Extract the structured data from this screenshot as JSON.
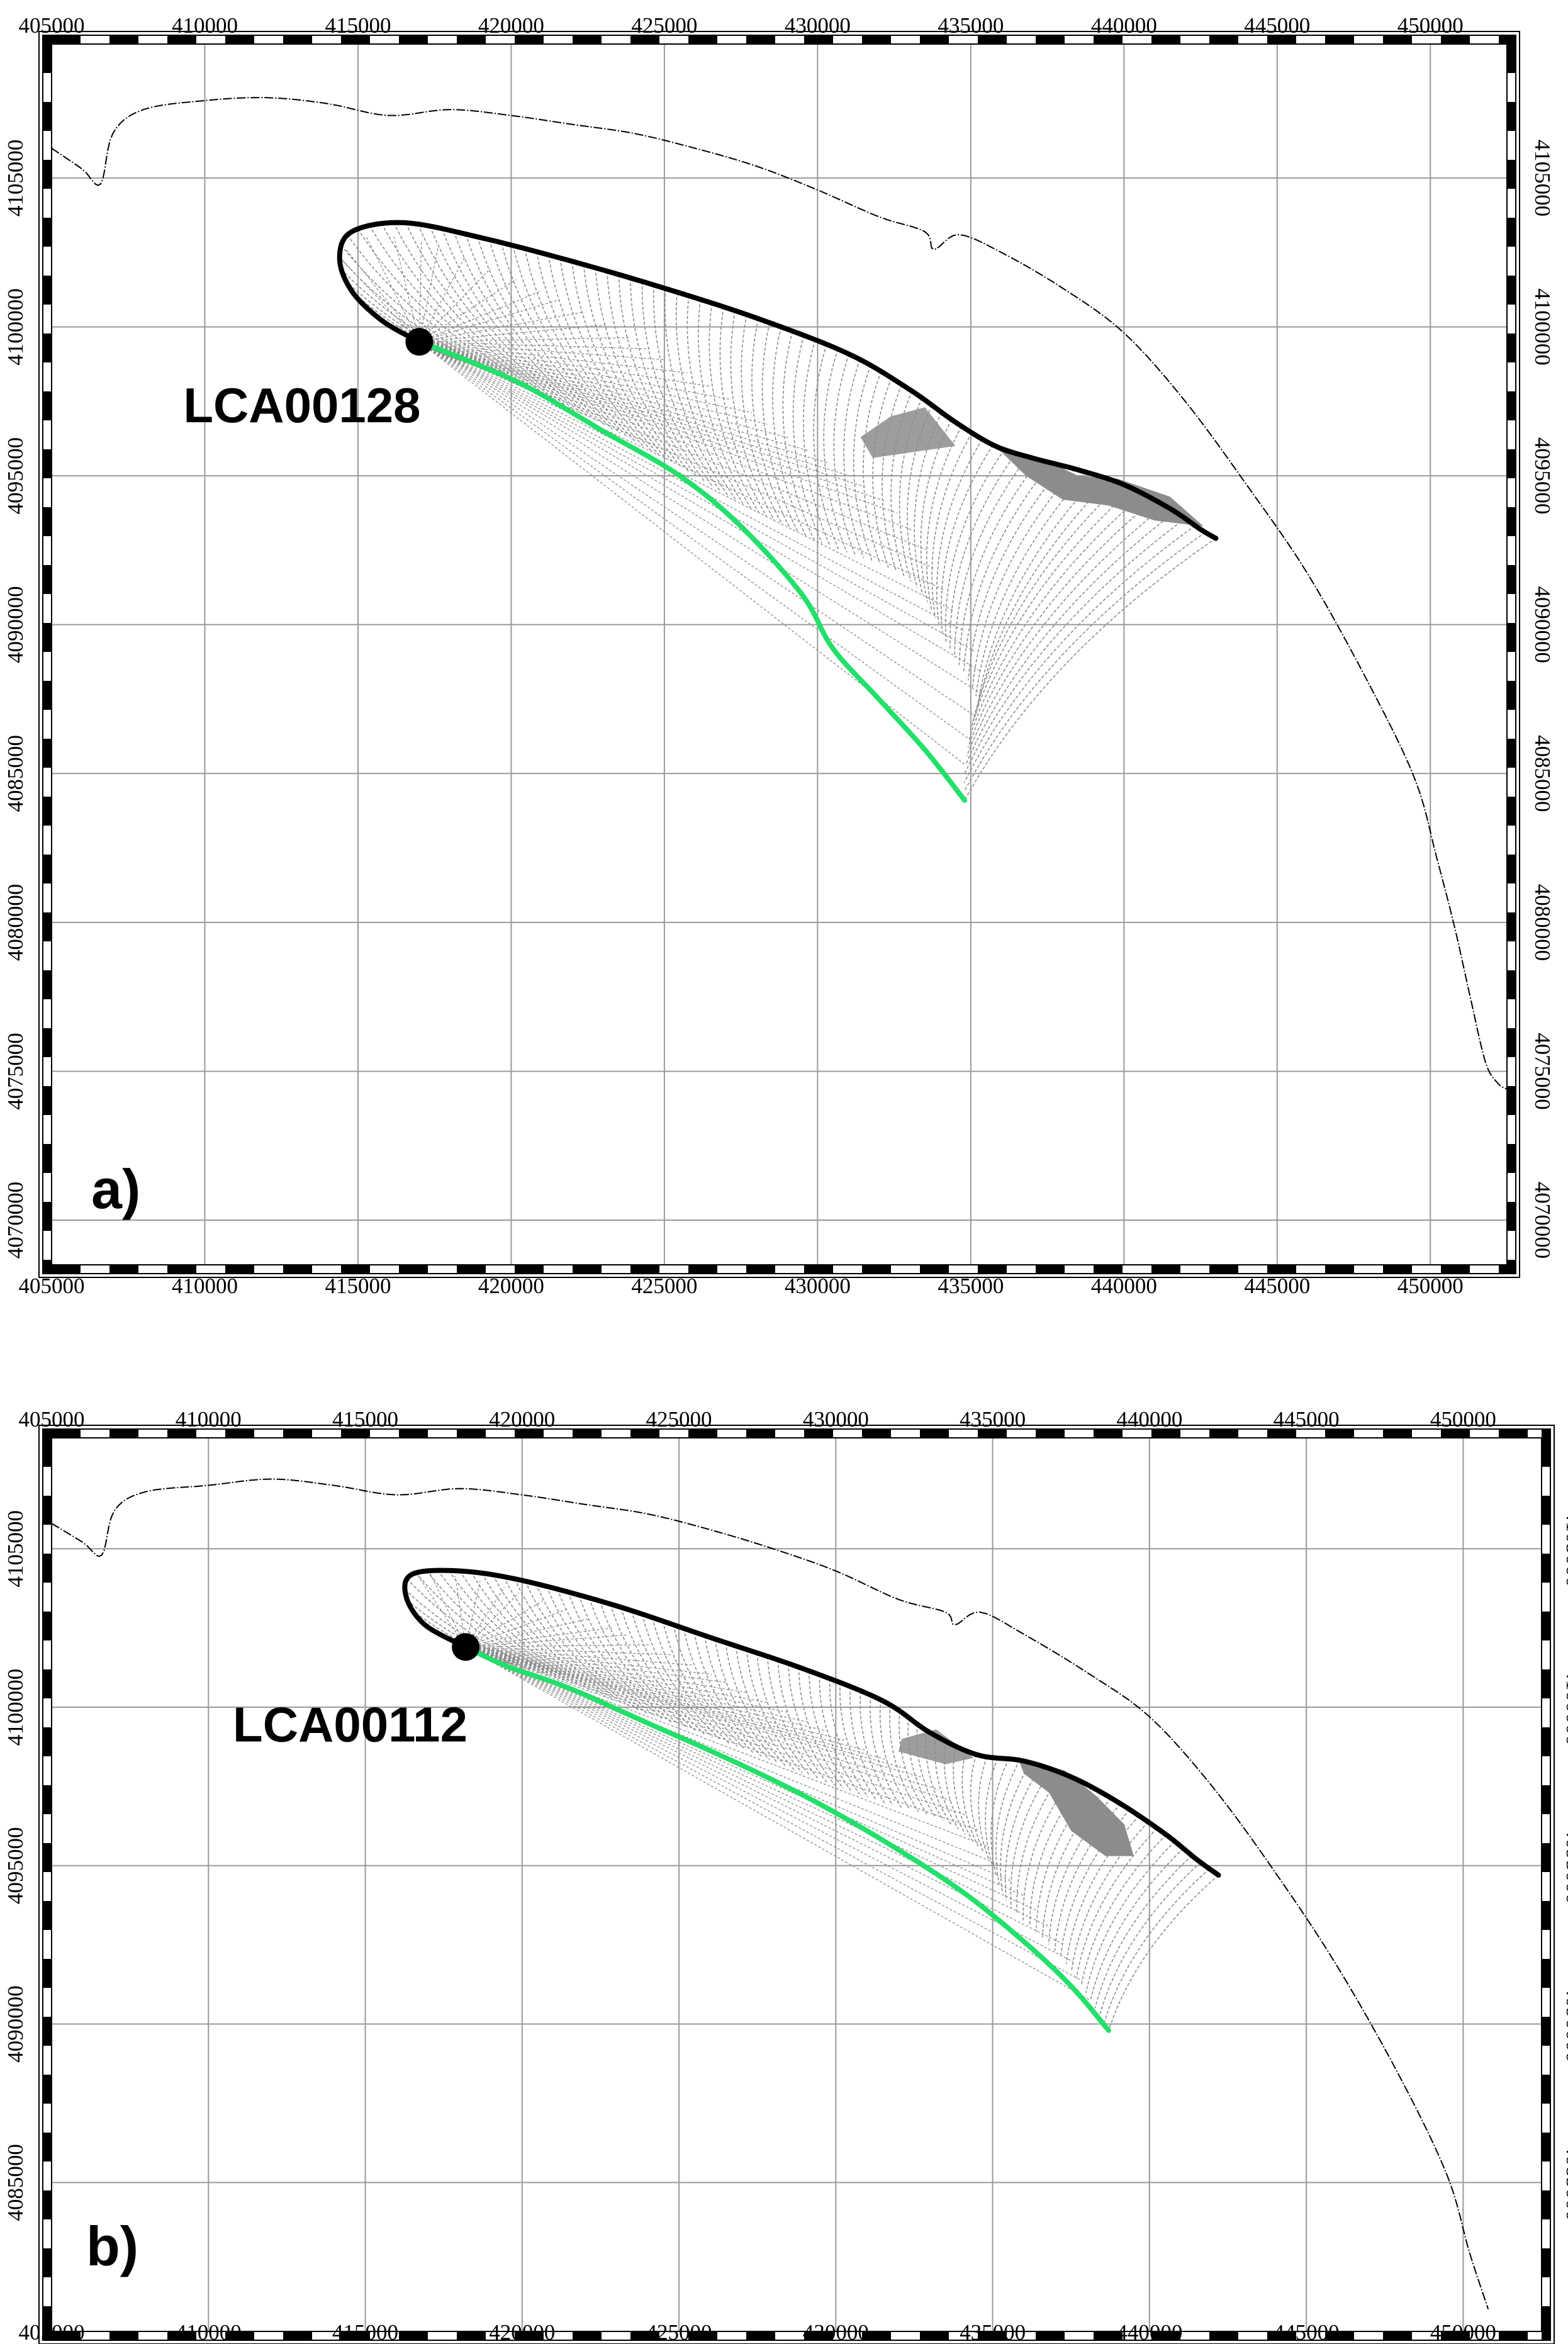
{
  "colors": {
    "grid": "#9a9a9a",
    "coast": "#000000",
    "trajectory": "#8c8c8c",
    "upper_boundary": "#000000",
    "lower_boundary": "#22e06a",
    "frame": "#000000"
  },
  "panels": [
    {
      "id": "a",
      "label": "a)",
      "site_label": "LCA00128",
      "x_ticks": [
        "405000",
        "410000",
        "415000",
        "420000",
        "425000",
        "430000",
        "435000",
        "440000",
        "445000",
        "450000"
      ],
      "y_ticks": [
        "4105000",
        "4100000",
        "4095000",
        "4090000",
        "4085000",
        "4080000",
        "4075000",
        "4070000"
      ],
      "x_range": [
        405000,
        452500
      ],
      "y_range": [
        4068500,
        4109500
      ],
      "site": [
        417000,
        4099500
      ],
      "coast": [
        [
          405000,
          4106000
        ],
        [
          406000,
          4105300
        ],
        [
          406600,
          4104800
        ],
        [
          407000,
          4106500
        ],
        [
          408000,
          4107300
        ],
        [
          410000,
          4107600
        ],
        [
          412000,
          4107700
        ],
        [
          414000,
          4107500
        ],
        [
          416000,
          4107100
        ],
        [
          418000,
          4107300
        ],
        [
          420000,
          4107100
        ],
        [
          422000,
          4106800
        ],
        [
          424000,
          4106500
        ],
        [
          426000,
          4106000
        ],
        [
          428000,
          4105400
        ],
        [
          430000,
          4104600
        ],
        [
          432000,
          4103700
        ],
        [
          433500,
          4103200
        ],
        [
          433800,
          4102600
        ],
        [
          434600,
          4103100
        ],
        [
          436000,
          4102500
        ],
        [
          438000,
          4101300
        ],
        [
          440000,
          4099800
        ],
        [
          442000,
          4097500
        ],
        [
          444000,
          4094700
        ],
        [
          446000,
          4091700
        ],
        [
          448000,
          4088000
        ],
        [
          449500,
          4084800
        ],
        [
          450200,
          4082200
        ],
        [
          450800,
          4079800
        ],
        [
          451300,
          4077500
        ],
        [
          451800,
          4075300
        ],
        [
          452200,
          4074600
        ],
        [
          452500,
          4074400
        ]
      ],
      "upper": [
        [
          417000,
          4099500
        ],
        [
          415800,
          4100200
        ],
        [
          414800,
          4101200
        ],
        [
          414400,
          4102300
        ],
        [
          414800,
          4103200
        ],
        [
          416500,
          4103500
        ],
        [
          419000,
          4103000
        ],
        [
          422000,
          4102200
        ],
        [
          425000,
          4101300
        ],
        [
          428000,
          4100300
        ],
        [
          431000,
          4099100
        ],
        [
          433000,
          4097900
        ],
        [
          434500,
          4096800
        ],
        [
          435800,
          4096000
        ],
        [
          437000,
          4095600
        ],
        [
          438500,
          4095200
        ],
        [
          440000,
          4094700
        ],
        [
          441500,
          4093900
        ],
        [
          442500,
          4093200
        ],
        [
          443000,
          4092900
        ]
      ],
      "lower": [
        [
          417000,
          4099500
        ],
        [
          418500,
          4098900
        ],
        [
          420500,
          4098000
        ],
        [
          423000,
          4096500
        ],
        [
          425500,
          4095000
        ],
        [
          427500,
          4093300
        ],
        [
          429500,
          4091000
        ],
        [
          430500,
          4089200
        ],
        [
          432000,
          4087500
        ],
        [
          433500,
          4085800
        ],
        [
          434800,
          4084100
        ]
      ],
      "hatch_upper": [
        [
          417000,
          4099500
        ],
        [
          415800,
          4100200
        ],
        [
          414800,
          4101200
        ],
        [
          414400,
          4102300
        ],
        [
          414800,
          4103200
        ],
        [
          416500,
          4103500
        ],
        [
          419000,
          4103000
        ],
        [
          422000,
          4102200
        ],
        [
          425000,
          4101300
        ],
        [
          428000,
          4100300
        ],
        [
          431000,
          4099100
        ],
        [
          433000,
          4097900
        ],
        [
          434500,
          4096800
        ],
        [
          435800,
          4096000
        ],
        [
          437000,
          4095600
        ],
        [
          438500,
          4095200
        ],
        [
          440000,
          4094700
        ],
        [
          441500,
          4093900
        ],
        [
          442500,
          4093200
        ],
        [
          443000,
          4092900
        ]
      ],
      "hatch_lower": [
        [
          417000,
          4099500
        ],
        [
          418000,
          4099000
        ],
        [
          420000,
          4098200
        ],
        [
          422500,
          4097000
        ],
        [
          425000,
          4095600
        ],
        [
          427500,
          4094100
        ],
        [
          430000,
          4092800
        ],
        [
          433000,
          4091500
        ],
        [
          434300,
          4089200
        ],
        [
          435200,
          4087500
        ],
        [
          435000,
          4086500
        ],
        [
          434800,
          4085000
        ],
        [
          434800,
          4084100
        ]
      ],
      "wedge": [
        [
          434800,
          4096500
        ],
        [
          436000,
          4096000
        ],
        [
          437500,
          4095500
        ],
        [
          438500,
          4095000
        ],
        [
          439800,
          4094900
        ],
        [
          441500,
          4094300
        ],
        [
          442600,
          4093300
        ],
        [
          441000,
          4093500
        ],
        [
          439500,
          4094000
        ],
        [
          438000,
          4094200
        ],
        [
          436800,
          4095000
        ],
        [
          436000,
          4095800
        ]
      ],
      "fan_end": [
        [
          433500,
          4097300
        ],
        [
          432400,
          4097000
        ],
        [
          431400,
          4096300
        ],
        [
          431800,
          4095600
        ],
        [
          434500,
          4096000
        ]
      ],
      "fan_end_b": [
        [
          434000,
          4089800
        ],
        [
          435200,
          4087800
        ],
        [
          435000,
          4086000
        ],
        [
          434800,
          4084600
        ]
      ]
    },
    {
      "id": "b",
      "label": "b)",
      "site_label": "LCA00112",
      "x_ticks": [
        "405000",
        "410000",
        "415000",
        "420000",
        "425000",
        "430000",
        "435000",
        "440000",
        "445000",
        "450000"
      ],
      "y_ticks": [
        "4105000",
        "4100000",
        "4095000",
        "4090000",
        "4085000"
      ],
      "x_range": [
        405000,
        452500
      ],
      "y_range": [
        4080300,
        4108500
      ],
      "site": [
        418200,
        4101900
      ],
      "coast": [
        [
          405000,
          4105800
        ],
        [
          406000,
          4105200
        ],
        [
          406600,
          4104800
        ],
        [
          407000,
          4106200
        ],
        [
          408000,
          4106800
        ],
        [
          410000,
          4107000
        ],
        [
          412000,
          4107200
        ],
        [
          414000,
          4107000
        ],
        [
          416000,
          4106700
        ],
        [
          418000,
          4106900
        ],
        [
          420000,
          4106700
        ],
        [
          422000,
          4106400
        ],
        [
          424000,
          4106100
        ],
        [
          426000,
          4105600
        ],
        [
          428000,
          4105000
        ],
        [
          430000,
          4104300
        ],
        [
          432000,
          4103400
        ],
        [
          433500,
          4103000
        ],
        [
          433800,
          4102600
        ],
        [
          434600,
          4103000
        ],
        [
          436000,
          4102300
        ],
        [
          438000,
          4101100
        ],
        [
          440000,
          4099700
        ],
        [
          442000,
          4097500
        ],
        [
          444000,
          4094800
        ],
        [
          446000,
          4091800
        ],
        [
          448000,
          4088300
        ],
        [
          449500,
          4085200
        ],
        [
          450200,
          4082800
        ],
        [
          450800,
          4081000
        ]
      ],
      "upper": [
        [
          418200,
          4101900
        ],
        [
          416900,
          4102600
        ],
        [
          416300,
          4103500
        ],
        [
          416500,
          4104200
        ],
        [
          418000,
          4104300
        ],
        [
          420000,
          4104000
        ],
        [
          423000,
          4103200
        ],
        [
          426000,
          4102200
        ],
        [
          429000,
          4101200
        ],
        [
          431500,
          4100200
        ],
        [
          433000,
          4099200
        ],
        [
          434500,
          4098500
        ],
        [
          436000,
          4098300
        ],
        [
          437500,
          4097800
        ],
        [
          439000,
          4097000
        ],
        [
          440500,
          4096000
        ],
        [
          441500,
          4095200
        ],
        [
          442200,
          4094700
        ]
      ],
      "lower": [
        [
          418200,
          4101900
        ],
        [
          419500,
          4101300
        ],
        [
          421500,
          4100600
        ],
        [
          424000,
          4099500
        ],
        [
          426500,
          4098400
        ],
        [
          429000,
          4097200
        ],
        [
          431500,
          4095800
        ],
        [
          434000,
          4094200
        ],
        [
          436000,
          4092600
        ],
        [
          437500,
          4091200
        ],
        [
          438700,
          4089800
        ]
      ],
      "hatch_upper": [
        [
          418200,
          4101900
        ],
        [
          416900,
          4102600
        ],
        [
          416300,
          4103500
        ],
        [
          416500,
          4104200
        ],
        [
          418000,
          4104300
        ],
        [
          420000,
          4104000
        ],
        [
          423000,
          4103200
        ],
        [
          426000,
          4102200
        ],
        [
          429000,
          4101200
        ],
        [
          431500,
          4100200
        ],
        [
          433000,
          4099200
        ],
        [
          434500,
          4098500
        ],
        [
          436000,
          4098300
        ],
        [
          437500,
          4097800
        ],
        [
          439000,
          4097000
        ],
        [
          440500,
          4096000
        ],
        [
          441500,
          4095200
        ],
        [
          442200,
          4094700
        ]
      ],
      "hatch_lower": [
        [
          418200,
          4101900
        ],
        [
          419500,
          4101400
        ],
        [
          421500,
          4100800
        ],
        [
          424000,
          4099800
        ],
        [
          426500,
          4098900
        ],
        [
          429000,
          4097900
        ],
        [
          431500,
          4097000
        ],
        [
          433500,
          4096400
        ],
        [
          434800,
          4095300
        ],
        [
          435500,
          4093800
        ],
        [
          436600,
          4092700
        ],
        [
          437500,
          4091700
        ],
        [
          438700,
          4089800
        ]
      ],
      "wedge": [
        [
          435800,
          4098400
        ],
        [
          437300,
          4098000
        ],
        [
          438300,
          4097200
        ],
        [
          439200,
          4096300
        ],
        [
          439500,
          4095300
        ],
        [
          438600,
          4095300
        ],
        [
          437500,
          4096100
        ],
        [
          436800,
          4097300
        ],
        [
          436000,
          4097900
        ]
      ],
      "fan_end": [
        [
          433200,
          4099300
        ],
        [
          432100,
          4099000
        ],
        [
          432000,
          4098600
        ],
        [
          433500,
          4098200
        ],
        [
          434400,
          4098400
        ]
      ],
      "fan_end_b": [
        [
          434800,
          4095300
        ],
        [
          435500,
          4093800
        ],
        [
          436600,
          4092700
        ],
        [
          437500,
          4091700
        ],
        [
          438700,
          4089800
        ]
      ]
    }
  ]
}
